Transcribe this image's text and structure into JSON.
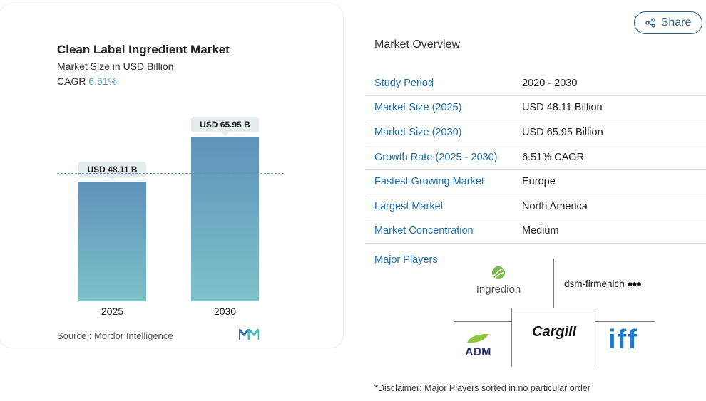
{
  "chart_data": {
    "type": "bar",
    "title": "Clean Label Ingredient Market",
    "subtitle": "Market Size in USD Billion",
    "cagr_label": "CAGR",
    "cagr_value": "6.51%",
    "categories": [
      "2025",
      "2030"
    ],
    "values": [
      48.11,
      65.95
    ],
    "data_labels": [
      "USD 48.11 B",
      "USD 65.95 B"
    ],
    "ylim": [
      0,
      70
    ],
    "source": "Source :  Mordor Intelligence"
  },
  "share_label": "Share",
  "overview": {
    "title": "Market Overview",
    "rows": [
      {
        "k": "Study Period",
        "v": "2020 - 2030"
      },
      {
        "k": "Market Size (2025)",
        "v": "USD 48.11 Billion"
      },
      {
        "k": "Market Size (2030)",
        "v": "USD 65.95 Billion"
      },
      {
        "k": "Growth Rate (2025 - 2030)",
        "v": "6.51% CAGR"
      },
      {
        "k": "Fastest Growing Market",
        "v": "Europe"
      },
      {
        "k": "Largest Market",
        "v": "North America"
      },
      {
        "k": "Market Concentration",
        "v": "Medium"
      }
    ],
    "major_players_label": "Major Players",
    "players": [
      "Ingredion",
      "dsm-firmenich",
      "Cargill",
      "ADM",
      "iff"
    ],
    "disclaimer": "*Disclaimer: Major Players sorted in no particular order"
  },
  "colors": {
    "bar_top": "#5f93bb",
    "bar_bottom": "#7dc1c8",
    "accent": "#1b6fae"
  }
}
